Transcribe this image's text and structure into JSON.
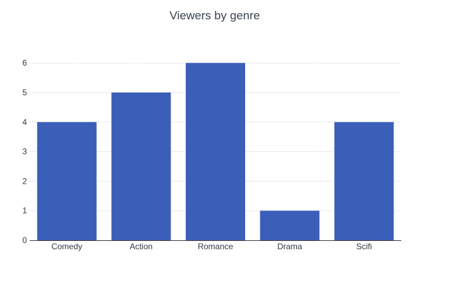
{
  "chart_data": {
    "type": "bar",
    "title": "Viewers by genre",
    "xlabel": "",
    "ylabel": "",
    "categories": [
      "Comedy",
      "Action",
      "Romance",
      "Drama",
      "Scifi"
    ],
    "series": [
      {
        "values": [
          4,
          5,
          6,
          1,
          4
        ]
      }
    ],
    "y_ticks": [
      0,
      1,
      2,
      3,
      4,
      5,
      6
    ],
    "ylim": [
      0,
      6.4
    ],
    "grid": true,
    "legend": "none",
    "colors": {
      "bar": "#3b5fb8"
    }
  }
}
